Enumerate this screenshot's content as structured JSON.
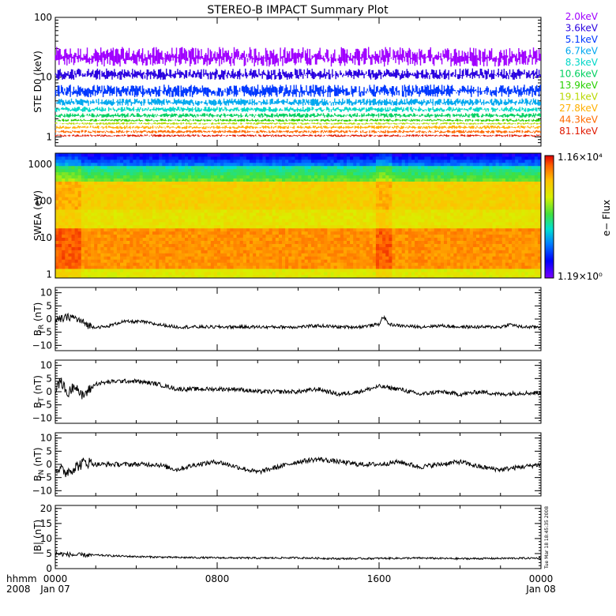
{
  "title": "STEREO-B IMPACT Summary Plot",
  "timestamp_label": "Tue Mar 18 18:45:35 2008",
  "time_axis": {
    "row1_label": "hhmm",
    "row2_label": "2008",
    "ticks": [
      {
        "hour": 0,
        "label": "0000",
        "sub": "Jan 07"
      },
      {
        "hour": 8,
        "label": "0800",
        "sub": ""
      },
      {
        "hour": 16,
        "label": "1600",
        "sub": ""
      },
      {
        "hour": 24,
        "label": "0000",
        "sub": "Jan 08"
      }
    ],
    "range_hours": [
      0,
      24
    ]
  },
  "colors": {
    "black": "#000000",
    "ste_channels": [
      "#a000ff",
      "#2a00e0",
      "#0038ff",
      "#00a8f0",
      "#00d8c8",
      "#00d060",
      "#28d000",
      "#b8d800",
      "#ffb000",
      "#ff6a00",
      "#e01800"
    ]
  },
  "colorbar": {
    "label": "e− Flux",
    "max_label": "1.16×10⁴",
    "min_label": "1.19×10⁰"
  },
  "chart_data": [
    {
      "type": "line",
      "name": "ste",
      "ylabel": "STE D0 (keV)",
      "scale": "log",
      "ylim": [
        0.7,
        100
      ],
      "yticks": [
        1,
        10,
        100
      ],
      "ytick_labels": [
        "1",
        "10",
        "100"
      ],
      "series": [
        {
          "name": "2.0keV",
          "values_range": [
            15,
            32
          ]
        },
        {
          "name": "3.6keV",
          "values_range": [
            9,
            14
          ]
        },
        {
          "name": "5.1keV",
          "values_range": [
            4.6,
            7.5
          ]
        },
        {
          "name": "6.7keV",
          "values_range": [
            3.3,
            4.4
          ]
        },
        {
          "name": "8.3keV",
          "values_range": [
            2.6,
            3.2
          ]
        },
        {
          "name": "10.6keV",
          "values_range": [
            2.1,
            2.5
          ]
        },
        {
          "name": "13.9keV",
          "values_range": [
            1.8,
            2.0
          ]
        },
        {
          "name": "19.1keV",
          "values_range": [
            1.6,
            1.75
          ]
        },
        {
          "name": "27.8keV",
          "values_range": [
            1.35,
            1.55
          ]
        },
        {
          "name": "44.3keV",
          "values_range": [
            1.15,
            1.3
          ]
        },
        {
          "name": "81.1keV",
          "values_range": [
            1.0,
            1.1
          ]
        }
      ]
    },
    {
      "type": "heatmap",
      "name": "swea",
      "ylabel": "SWEA (eV)",
      "scale": "log",
      "ylim": [
        0.8,
        2000
      ],
      "yticks": [
        1,
        10,
        100,
        1000
      ],
      "ytick_labels": [
        "1",
        "10",
        "100",
        "1000"
      ]
    },
    {
      "type": "line",
      "name": "br",
      "ylabel": "B",
      "ylabel_sub": "R",
      "ylabel_unit": "(nT)",
      "ylim": [
        -12,
        12
      ],
      "yticks": [
        -10,
        -5,
        0,
        5,
        10
      ],
      "ytick_labels": [
        "−10",
        "−5",
        "0",
        "5",
        "10"
      ],
      "points": [
        [
          0,
          -1
        ],
        [
          0.3,
          0
        ],
        [
          0.8,
          1
        ],
        [
          1.3,
          -1
        ],
        [
          1.8,
          -3
        ],
        [
          2.5,
          -3
        ],
        [
          3.3,
          -1
        ],
        [
          4.3,
          -1
        ],
        [
          5,
          -2
        ],
        [
          6,
          -3
        ],
        [
          7,
          -3
        ],
        [
          8,
          -3
        ],
        [
          9,
          -3
        ],
        [
          10,
          -3
        ],
        [
          11,
          -3
        ],
        [
          12,
          -3
        ],
        [
          13,
          -2.5
        ],
        [
          14,
          -3
        ],
        [
          15,
          -3
        ],
        [
          16,
          -2
        ],
        [
          16.2,
          1
        ],
        [
          16.5,
          -2
        ],
        [
          17,
          -2.5
        ],
        [
          18,
          -3
        ],
        [
          19,
          -2.5
        ],
        [
          20,
          -3
        ],
        [
          21,
          -3
        ],
        [
          22,
          -3
        ],
        [
          22.5,
          -2
        ],
        [
          23,
          -3
        ],
        [
          24,
          -3
        ]
      ],
      "noise": 0.6
    },
    {
      "type": "line",
      "name": "bt",
      "ylabel": "B",
      "ylabel_sub": "T",
      "ylabel_unit": "(nT)",
      "ylim": [
        -12,
        12
      ],
      "yticks": [
        -10,
        -5,
        0,
        5,
        10
      ],
      "ytick_labels": [
        "−10",
        "−5",
        "0",
        "5",
        "10"
      ],
      "points": [
        [
          0,
          1
        ],
        [
          0.3,
          4
        ],
        [
          0.6,
          -1
        ],
        [
          1,
          3
        ],
        [
          1.3,
          -2
        ],
        [
          2,
          3
        ],
        [
          3,
          4
        ],
        [
          4,
          4
        ],
        [
          5,
          3
        ],
        [
          6,
          1
        ],
        [
          7,
          1
        ],
        [
          8,
          1
        ],
        [
          9,
          1
        ],
        [
          10,
          0
        ],
        [
          11,
          0
        ],
        [
          12,
          0
        ],
        [
          13,
          1
        ],
        [
          14,
          -1
        ],
        [
          15,
          0
        ],
        [
          16,
          2
        ],
        [
          17,
          1
        ],
        [
          18,
          -1
        ],
        [
          19,
          0
        ],
        [
          20,
          -1
        ],
        [
          21,
          0
        ],
        [
          22,
          -1
        ],
        [
          23,
          -0.5
        ],
        [
          24,
          -0.5
        ]
      ],
      "noise": 0.8
    },
    {
      "type": "line",
      "name": "bn",
      "ylabel": "B",
      "ylabel_sub": "N",
      "ylabel_unit": "(nT)",
      "ylim": [
        -12,
        12
      ],
      "yticks": [
        -10,
        -5,
        0,
        5,
        10
      ],
      "ytick_labels": [
        "−10",
        "−5",
        "0",
        "5",
        "10"
      ],
      "points": [
        [
          0,
          -1
        ],
        [
          0.5,
          -3
        ],
        [
          1,
          -1
        ],
        [
          1.5,
          1
        ],
        [
          2,
          0
        ],
        [
          3,
          0
        ],
        [
          4,
          0
        ],
        [
          5,
          0
        ],
        [
          6,
          -2
        ],
        [
          7,
          0
        ],
        [
          8,
          1
        ],
        [
          9,
          -1
        ],
        [
          10,
          -3
        ],
        [
          11,
          -1
        ],
        [
          12,
          1
        ],
        [
          13,
          2
        ],
        [
          14,
          1
        ],
        [
          15,
          0
        ],
        [
          16,
          0
        ],
        [
          17,
          1
        ],
        [
          18,
          -1
        ],
        [
          19,
          0
        ],
        [
          20,
          1
        ],
        [
          21,
          -1
        ],
        [
          22,
          -2
        ],
        [
          23,
          -1
        ],
        [
          24,
          0
        ]
      ],
      "noise": 0.9
    },
    {
      "type": "line",
      "name": "bmag",
      "ylabel": "|B| (nT)",
      "ylim": [
        0,
        21
      ],
      "yticks": [
        0,
        5,
        10,
        15,
        20
      ],
      "ytick_labels": [
        "0",
        "5",
        "10",
        "15",
        "20"
      ],
      "points": [
        [
          0,
          5
        ],
        [
          1,
          4.5
        ],
        [
          2,
          4.5
        ],
        [
          3,
          4.2
        ],
        [
          4,
          4
        ],
        [
          6,
          3.7
        ],
        [
          8,
          3.6
        ],
        [
          10,
          3.5
        ],
        [
          12,
          3.6
        ],
        [
          14,
          3.3
        ],
        [
          16,
          3.4
        ],
        [
          18,
          3.5
        ],
        [
          20,
          3.3
        ],
        [
          22,
          3.4
        ],
        [
          24,
          3.5
        ]
      ],
      "noise": 0.3
    }
  ]
}
